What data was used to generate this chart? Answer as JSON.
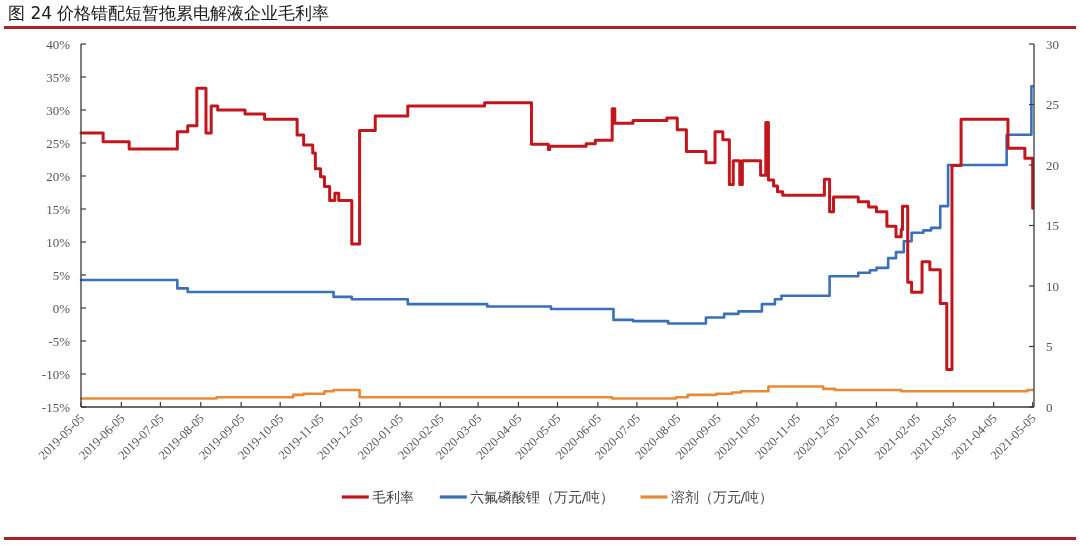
{
  "chart_data": {
    "type": "step",
    "title": "图 24 价格错配短暂拖累电解液企业毛利率",
    "legend": "bottom",
    "xlim": [
      "2019-05-05",
      "2021-05-06"
    ],
    "xticks": [
      "2019-05-05",
      "2019-06-05",
      "2019-07-05",
      "2019-08-05",
      "2019-09-05",
      "2019-10-05",
      "2019-11-05",
      "2019-12-05",
      "2020-01-05",
      "2020-02-05",
      "2020-03-05",
      "2020-04-05",
      "2020-05-05",
      "2020-06-05",
      "2020-07-05",
      "2020-08-05",
      "2020-09-05",
      "2020-10-05",
      "2020-11-05",
      "2020-12-05",
      "2021-01-05",
      "2021-02-05",
      "2021-03-05",
      "2021-04-05",
      "2021-05-05"
    ],
    "ylim": [
      -15,
      40
    ],
    "yticks": [
      {
        "value": -15,
        "label": "-15%"
      },
      {
        "value": -10,
        "label": "-10%"
      },
      {
        "value": -5,
        "label": "-5%"
      },
      {
        "value": 0,
        "label": "0%"
      },
      {
        "value": 5,
        "label": "5%"
      },
      {
        "value": 10,
        "label": "10%"
      },
      {
        "value": 15,
        "label": "15%"
      },
      {
        "value": 20,
        "label": "20%"
      },
      {
        "value": 25,
        "label": "25%"
      },
      {
        "value": 30,
        "label": "30%"
      },
      {
        "value": 35,
        "label": "35%"
      },
      {
        "value": 40,
        "label": "40%"
      }
    ],
    "y2lim": [
      0,
      30
    ],
    "y2ticks": [
      0,
      5,
      10,
      15,
      20,
      25,
      30
    ],
    "series": [
      {
        "name": "毛利率",
        "color": "#c0161c",
        "x": [
          "2019-05-05",
          "2019-05-22",
          "2019-06-11",
          "2019-07-18",
          "2019-07-26",
          "2019-08-02",
          "2019-08-09",
          "2019-08-13",
          "2019-08-18",
          "2019-09-08",
          "2019-09-23",
          "2019-10-18",
          "2019-10-23",
          "2019-10-30",
          "2019-11-01",
          "2019-11-05",
          "2019-11-08",
          "2019-11-12",
          "2019-11-16",
          "2019-11-19",
          "2019-11-29",
          "2019-12-05",
          "2019-12-17",
          "2020-01-11",
          "2020-03-10",
          "2020-04-15",
          "2020-04-28",
          "2020-04-29",
          "2020-05-27",
          "2020-06-03",
          "2020-06-16",
          "2020-06-18",
          "2020-07-02",
          "2020-07-28",
          "2020-08-05",
          "2020-08-12",
          "2020-08-27",
          "2020-09-03",
          "2020-09-09",
          "2020-09-14",
          "2020-09-17",
          "2020-09-22",
          "2020-09-24",
          "2020-10-08",
          "2020-10-12",
          "2020-10-14",
          "2020-10-18",
          "2020-10-21",
          "2020-10-25",
          "2020-11-26",
          "2020-11-30",
          "2020-12-03",
          "2020-12-22",
          "2020-12-30",
          "2021-01-05",
          "2021-01-13",
          "2021-01-20",
          "2021-01-24",
          "2021-01-25",
          "2021-01-29",
          "2021-02-01",
          "2021-02-09",
          "2021-02-15",
          "2021-02-23",
          "2021-02-28",
          "2021-03-04",
          "2021-03-11",
          "2021-04-16",
          "2021-04-29",
          "2021-05-05"
        ],
        "values": [
          26.5,
          25.2,
          24.1,
          26.7,
          27.6,
          33.3,
          26.5,
          30.6,
          30.0,
          29.4,
          28.6,
          26.2,
          24.7,
          23.5,
          21.1,
          19.9,
          18.4,
          16.3,
          17.4,
          16.3,
          9.7,
          26.9,
          29.1,
          30.6,
          31.1,
          24.8,
          24.0,
          24.5,
          24.9,
          25.4,
          30.2,
          28.0,
          28.4,
          28.8,
          27.0,
          23.7,
          22.0,
          26.7,
          25.5,
          18.7,
          22.3,
          18.7,
          22.3,
          20.1,
          28.1,
          19.4,
          18.5,
          17.6,
          17.1,
          19.5,
          14.6,
          16.8,
          16.1,
          15.3,
          14.6,
          12.4,
          10.8,
          11.9,
          15.4,
          3.9,
          2.4,
          7.0,
          5.8,
          0.7,
          -9.3,
          21.6,
          28.6,
          24.2,
          22.7,
          15.1
        ]
      },
      {
        "name": "六氟磷酸锂（万元/吨）",
        "color": "#3a70b8",
        "axis": "y2",
        "x": [
          "2019-05-05",
          "2019-07-18",
          "2019-07-26",
          "2019-11-15",
          "2019-11-29",
          "2020-01-11",
          "2020-03-12",
          "2020-04-30",
          "2020-06-17",
          "2020-07-02",
          "2020-07-29",
          "2020-08-27",
          "2020-09-10",
          "2020-09-21",
          "2020-10-09",
          "2020-10-19",
          "2020-10-24",
          "2020-11-30",
          "2020-12-22",
          "2020-12-31",
          "2021-01-05",
          "2021-01-14",
          "2021-01-20",
          "2021-01-26",
          "2021-02-01",
          "2021-02-10",
          "2021-02-16",
          "2021-02-23",
          "2021-03-01",
          "2021-04-15",
          "2021-05-04",
          "2021-05-05"
        ],
        "values": [
          10.5,
          9.8,
          9.5,
          9.1,
          8.9,
          8.5,
          8.3,
          8.1,
          7.2,
          7.1,
          6.9,
          7.4,
          7.7,
          7.9,
          8.5,
          8.9,
          9.2,
          10.8,
          11.1,
          11.3,
          11.5,
          12.3,
          12.8,
          13.7,
          14.4,
          14.6,
          14.8,
          16.6,
          20.0,
          22.5,
          26.5,
          26.5
        ]
      },
      {
        "name": "溶剂（万元/吨）",
        "color": "#e88a35",
        "axis": "y2",
        "x": [
          "2019-05-05",
          "2019-08-17",
          "2019-10-15",
          "2019-10-23",
          "2019-11-08",
          "2019-11-15",
          "2019-12-05",
          "2020-06-16",
          "2020-08-04",
          "2020-08-13",
          "2020-09-04",
          "2020-09-16",
          "2020-09-23",
          "2020-10-14",
          "2020-11-25",
          "2020-12-04",
          "2021-01-24",
          "2021-05-01",
          "2021-05-05"
        ],
        "values": [
          0.7,
          0.8,
          1.0,
          1.1,
          1.3,
          1.4,
          0.8,
          0.7,
          0.8,
          1.0,
          1.1,
          1.2,
          1.3,
          1.7,
          1.5,
          1.4,
          1.3,
          1.4,
          1.4
        ]
      }
    ]
  }
}
